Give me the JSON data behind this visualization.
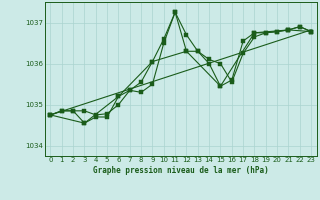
{
  "title": "Graphe pression niveau de la mer (hPa)",
  "bg_color": "#cceae7",
  "grid_color": "#aad4d0",
  "line_color": "#1a5c1a",
  "xlim": [
    -0.5,
    23.5
  ],
  "ylim": [
    1033.75,
    1037.5
  ],
  "xticks": [
    0,
    1,
    2,
    3,
    4,
    5,
    6,
    7,
    8,
    9,
    10,
    11,
    12,
    13,
    14,
    15,
    16,
    17,
    18,
    19,
    20,
    21,
    22,
    23
  ],
  "yticks": [
    1034,
    1035,
    1036,
    1037
  ],
  "series1_x": [
    0,
    1,
    2,
    3,
    4,
    5,
    6,
    7,
    8,
    9,
    10,
    11,
    12,
    13,
    14,
    15,
    16,
    17,
    18,
    19,
    20,
    21,
    22,
    23
  ],
  "series1_y": [
    1034.75,
    1034.85,
    1034.85,
    1034.85,
    1034.75,
    1034.78,
    1035.0,
    1035.35,
    1035.55,
    1036.05,
    1036.6,
    1037.25,
    1036.7,
    1036.3,
    1036.1,
    1036.0,
    1035.55,
    1036.25,
    1036.65,
    1036.75,
    1036.78,
    1036.82,
    1036.9,
    1036.78
  ],
  "series2_x": [
    0,
    1,
    2,
    3,
    4,
    5,
    6,
    7,
    8,
    9,
    10,
    11,
    12,
    13,
    14,
    15,
    16,
    17,
    18,
    19,
    20,
    21,
    22,
    23
  ],
  "series2_y": [
    1034.75,
    1034.85,
    1034.85,
    1034.55,
    1034.7,
    1034.7,
    1035.2,
    1035.35,
    1035.3,
    1035.5,
    1036.5,
    1037.25,
    1036.3,
    1036.3,
    1036.0,
    1035.45,
    1035.6,
    1036.55,
    1036.75,
    1036.75,
    1036.78,
    1036.82,
    1036.9,
    1036.78
  ],
  "series3_x": [
    0,
    3,
    6,
    9,
    12,
    15,
    18,
    21,
    23
  ],
  "series3_y": [
    1034.75,
    1034.55,
    1035.2,
    1036.05,
    1036.3,
    1035.45,
    1036.75,
    1036.82,
    1036.78
  ],
  "trend_x": [
    0,
    23
  ],
  "trend_y": [
    1034.75,
    1036.82
  ]
}
